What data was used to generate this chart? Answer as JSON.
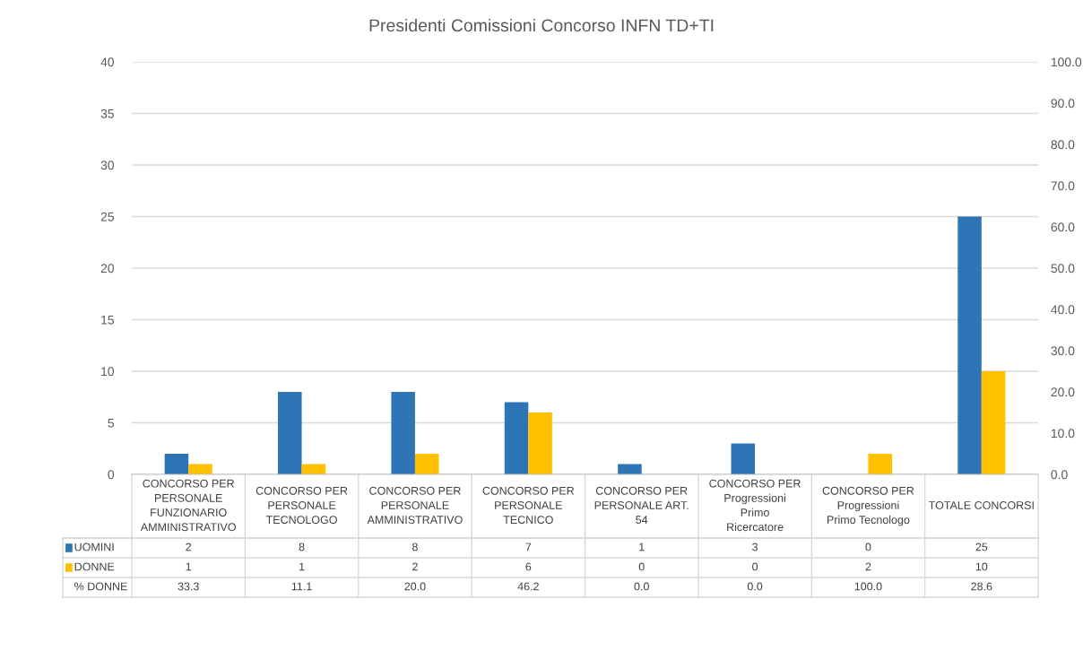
{
  "chart_data": {
    "type": "bar",
    "title": "Presidenti Comissioni Concorso INFN TD+TI",
    "categories": [
      "CONCORSO PER PERSONALE FUNZIONARIO AMMINISTRATIVO",
      "CONCORSO PER PERSONALE TECNOLOGO",
      "CONCORSO PER PERSONALE AMMINISTRATIVO",
      "CONCORSO PER PERSONALE TECNICO",
      "CONCORSO PER PERSONALE ART. 54",
      "CONCORSO PER Progressioni Primo Ricercatore",
      "CONCORSO PER Progressioni Primo Tecnologo",
      "TOTALE CONCORSI"
    ],
    "series": [
      {
        "name": "UOMINI",
        "color": "#2e75b6",
        "values": [
          2,
          8,
          8,
          7,
          1,
          3,
          0,
          25
        ]
      },
      {
        "name": "DONNE",
        "color": "#ffc000",
        "values": [
          1,
          1,
          2,
          6,
          0,
          0,
          2,
          10
        ]
      }
    ],
    "ylim": [
      0,
      40
    ],
    "yticks": [
      0,
      5,
      10,
      15,
      20,
      25,
      30,
      35,
      40
    ],
    "y2lim": [
      0,
      100
    ],
    "y2ticks": [
      {
        "value": 0,
        "label": "0.0"
      },
      {
        "value": 10,
        "label": "10.0"
      },
      {
        "value": 20,
        "label": "20.0"
      },
      {
        "value": 30,
        "label": "30.0"
      },
      {
        "value": 40,
        "label": "40.0"
      },
      {
        "value": 50,
        "label": "50.0"
      },
      {
        "value": 60,
        "label": "60.0"
      },
      {
        "value": 70,
        "label": "70.0"
      },
      {
        "value": 80,
        "label": "80.0"
      },
      {
        "value": 90,
        "label": "90.0"
      },
      {
        "value": 100,
        "label": "100.0"
      }
    ],
    "grid": "y",
    "legend": "bottom",
    "data_labels": true,
    "annotations": [
      "% DONNE",
      "33.3",
      "11.1",
      "20.0",
      "46.2",
      "0.0",
      "0.0",
      "100.0",
      "28.6"
    ]
  }
}
